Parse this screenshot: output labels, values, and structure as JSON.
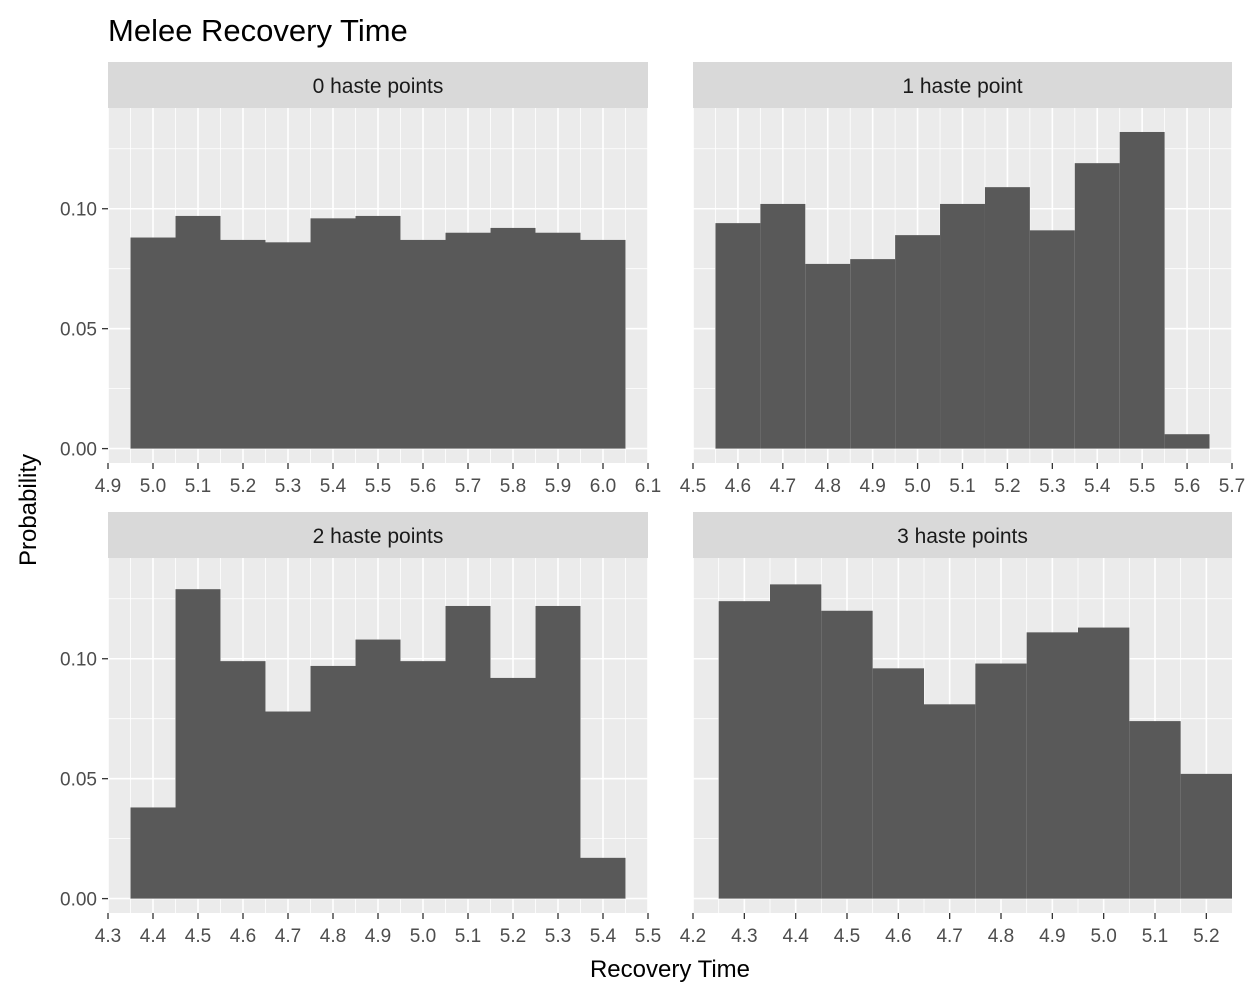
{
  "chart_data": {
    "type": "bar",
    "title": "Melee Recovery Time",
    "xlabel": "Recovery Time",
    "ylabel": "Probability",
    "bar_color": "#595959",
    "panel_background": "#ebebeb",
    "strip_background": "#d9d9d9",
    "grid": true,
    "y_ticks": [
      "0.00",
      "0.05",
      "0.10"
    ],
    "ylim": [
      -0.006,
      0.142
    ],
    "panels": [
      {
        "label": "0 haste points",
        "xlim": [
          4.9,
          6.1
        ],
        "x_ticks": [
          "4.9",
          "5.0",
          "5.1",
          "5.2",
          "5.3",
          "5.4",
          "5.5",
          "5.6",
          "5.7",
          "5.8",
          "5.9",
          "6.0",
          "6.1"
        ],
        "bins": [
          [
            4.95,
            5.05
          ],
          [
            5.05,
            5.15
          ],
          [
            5.15,
            5.25
          ],
          [
            5.25,
            5.35
          ],
          [
            5.35,
            5.45
          ],
          [
            5.45,
            5.55
          ],
          [
            5.55,
            5.65
          ],
          [
            5.65,
            5.75
          ],
          [
            5.75,
            5.85
          ],
          [
            5.85,
            5.95
          ],
          [
            5.95,
            6.05
          ]
        ],
        "values": [
          0.088,
          0.097,
          0.087,
          0.086,
          0.096,
          0.097,
          0.087,
          0.09,
          0.092,
          0.09,
          0.087
        ]
      },
      {
        "label": "1 haste point",
        "xlim": [
          4.5,
          5.7
        ],
        "x_ticks": [
          "4.5",
          "4.6",
          "4.7",
          "4.8",
          "4.9",
          "5.0",
          "5.1",
          "5.2",
          "5.3",
          "5.4",
          "5.5",
          "5.6",
          "5.7"
        ],
        "bins": [
          [
            4.55,
            4.65
          ],
          [
            4.65,
            4.75
          ],
          [
            4.75,
            4.85
          ],
          [
            4.85,
            4.95
          ],
          [
            4.95,
            5.05
          ],
          [
            5.05,
            5.15
          ],
          [
            5.15,
            5.25
          ],
          [
            5.25,
            5.35
          ],
          [
            5.35,
            5.45
          ],
          [
            5.45,
            5.55
          ],
          [
            5.55,
            5.65
          ]
        ],
        "values": [
          0.094,
          0.102,
          0.077,
          0.079,
          0.089,
          0.102,
          0.109,
          0.091,
          0.119,
          0.132,
          0.006
        ]
      },
      {
        "label": "2 haste points",
        "xlim": [
          4.3,
          5.5
        ],
        "x_ticks": [
          "4.3",
          "4.4",
          "4.5",
          "4.6",
          "4.7",
          "4.8",
          "4.9",
          "5.0",
          "5.1",
          "5.2",
          "5.3",
          "5.4",
          "5.5"
        ],
        "bins": [
          [
            4.35,
            4.45
          ],
          [
            4.45,
            4.55
          ],
          [
            4.55,
            4.65
          ],
          [
            4.65,
            4.75
          ],
          [
            4.75,
            4.85
          ],
          [
            4.85,
            4.95
          ],
          [
            4.95,
            5.05
          ],
          [
            5.05,
            5.15
          ],
          [
            5.15,
            5.25
          ],
          [
            5.25,
            5.35
          ],
          [
            5.35,
            5.45
          ]
        ],
        "values": [
          0.038,
          0.129,
          0.099,
          0.078,
          0.097,
          0.108,
          0.099,
          0.122,
          0.092,
          0.122,
          0.017
        ]
      },
      {
        "label": "3 haste points",
        "xlim": [
          4.2,
          5.25
        ],
        "x_ticks": [
          "4.2",
          "4.3",
          "4.4",
          "4.5",
          "4.6",
          "4.7",
          "4.8",
          "4.9",
          "5.0",
          "5.1",
          "5.2"
        ],
        "bins": [
          [
            4.25,
            4.35
          ],
          [
            4.35,
            4.45
          ],
          [
            4.45,
            4.55
          ],
          [
            4.55,
            4.65
          ],
          [
            4.65,
            4.75
          ],
          [
            4.75,
            4.85
          ],
          [
            4.85,
            4.95
          ],
          [
            4.95,
            5.05
          ],
          [
            5.05,
            5.15
          ],
          [
            5.15,
            5.25
          ]
        ],
        "values": [
          0.124,
          0.131,
          0.12,
          0.096,
          0.081,
          0.098,
          0.111,
          0.113,
          0.074,
          0.052
        ]
      }
    ]
  }
}
